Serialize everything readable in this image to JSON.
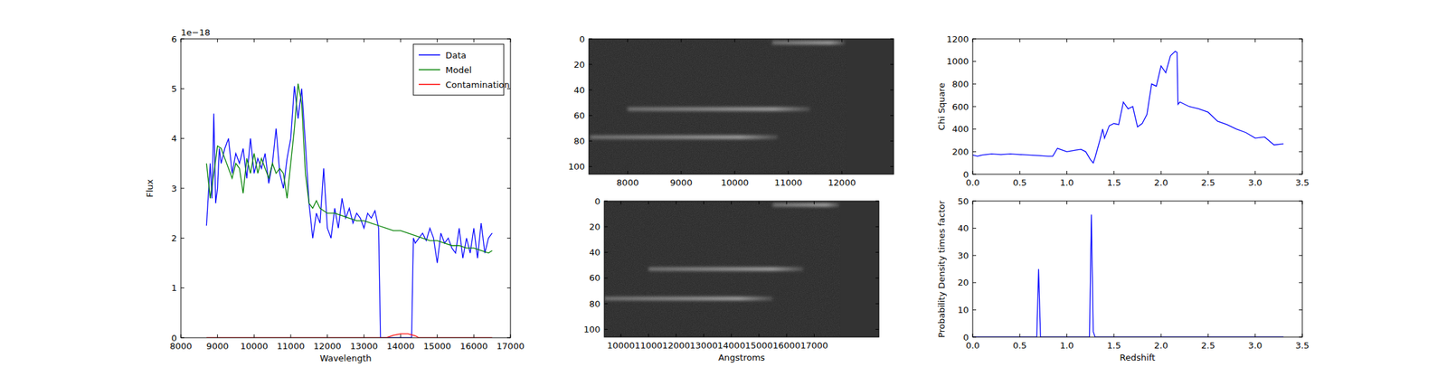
{
  "chart_data": [
    {
      "type": "line",
      "x_label": "Wavelength",
      "y_label": "Flux",
      "y_scale_label": "1e−18",
      "xlim": [
        8000,
        17000
      ],
      "xticks": [
        8000,
        9000,
        10000,
        11000,
        12000,
        13000,
        14000,
        15000,
        16000,
        17000
      ],
      "ylim": [
        0,
        6
      ],
      "yticks": [
        0,
        1,
        2,
        3,
        4,
        5,
        6
      ],
      "legend": "upper right",
      "series": [
        {
          "name": "Data",
          "color": "#0000ff",
          "x": [
            8700,
            8800,
            8850,
            8900,
            8950,
            9000,
            9050,
            9100,
            9200,
            9300,
            9400,
            9500,
            9600,
            9700,
            9800,
            9900,
            10000,
            10100,
            10200,
            10300,
            10400,
            10500,
            10600,
            10700,
            10800,
            10900,
            11000,
            11100,
            11200,
            11300,
            11400,
            11500,
            11600,
            11700,
            11800,
            11900,
            12000,
            12100,
            12200,
            12300,
            12400,
            12500,
            12600,
            12700,
            12800,
            12900,
            13000,
            13100,
            13200,
            13300,
            13400,
            13450,
            14300,
            14350,
            14400,
            14500,
            14600,
            14700,
            14800,
            14900,
            15000,
            15100,
            15200,
            15300,
            15400,
            15500,
            15600,
            15700,
            15800,
            15900,
            16000,
            16100,
            16200,
            16300,
            16400,
            16500
          ],
          "values": [
            2.25,
            3.5,
            2.8,
            4.5,
            2.7,
            3.0,
            3.8,
            3.5,
            3.8,
            4.0,
            3.3,
            3.7,
            3.5,
            3.8,
            3.2,
            4.0,
            3.3,
            3.6,
            3.4,
            3.7,
            3.1,
            3.5,
            4.2,
            3.3,
            3.0,
            3.6,
            4.0,
            5.05,
            4.4,
            5.0,
            3.9,
            2.7,
            2.0,
            2.5,
            2.3,
            3.4,
            2.2,
            2.0,
            2.6,
            2.2,
            2.8,
            2.4,
            2.6,
            2.3,
            2.5,
            2.4,
            2.2,
            2.5,
            2.4,
            2.55,
            2.2,
            0,
            0,
            2.0,
            1.9,
            2.0,
            2.1,
            1.95,
            2.2,
            2.0,
            1.5,
            2.1,
            1.9,
            2.0,
            1.8,
            1.7,
            2.2,
            1.6,
            2.0,
            1.7,
            2.2,
            1.6,
            2.3,
            1.7,
            2.0,
            2.1
          ]
        },
        {
          "name": "Model",
          "color": "#008000",
          "x": [
            8700,
            8800,
            8900,
            9000,
            9100,
            9200,
            9300,
            9400,
            9500,
            9600,
            9700,
            9800,
            9900,
            10000,
            10100,
            10200,
            10300,
            10400,
            10500,
            10600,
            10700,
            10800,
            10900,
            11000,
            11100,
            11200,
            11300,
            11400,
            11500,
            11600,
            11700,
            11800,
            11900,
            12000,
            12200,
            12400,
            12600,
            12800,
            13000,
            13200,
            13400,
            13600,
            13800,
            14000,
            14200,
            14400,
            14600,
            14800,
            15000,
            15200,
            15400,
            15600,
            15800,
            16000,
            16200,
            16400,
            16500
          ],
          "values": [
            3.5,
            2.8,
            3.3,
            3.85,
            3.8,
            3.6,
            3.4,
            3.2,
            3.5,
            3.4,
            2.9,
            3.6,
            3.3,
            3.7,
            3.3,
            3.6,
            3.4,
            3.2,
            3.5,
            3.3,
            3.4,
            3.3,
            2.8,
            3.5,
            4.2,
            5.1,
            4.7,
            3.3,
            2.7,
            2.6,
            2.75,
            2.6,
            2.55,
            2.5,
            2.5,
            2.45,
            2.4,
            2.35,
            2.35,
            2.3,
            2.25,
            2.2,
            2.15,
            2.15,
            2.1,
            2.05,
            2.0,
            1.95,
            1.95,
            1.9,
            1.85,
            1.85,
            1.8,
            1.8,
            1.75,
            1.7,
            1.75
          ]
        },
        {
          "name": "Contamination",
          "color": "#ff0000",
          "x": [
            8700,
            13600,
            13800,
            14000,
            14200,
            14400,
            14500,
            16500
          ],
          "values": [
            0,
            0,
            0.05,
            0.08,
            0.08,
            0.04,
            0,
            0
          ]
        }
      ]
    },
    {
      "type": "image",
      "xlim": [
        7276,
        12966
      ],
      "xticks": [
        8000,
        9000,
        10000,
        11000,
        12000
      ],
      "ylim": [
        106,
        0
      ],
      "yticks": [
        0,
        20,
        40,
        60,
        80,
        100
      ],
      "dark_from": 12086,
      "traces": [
        {
          "y": 3,
          "x0": 10700,
          "x1": 12050
        },
        {
          "y": 55,
          "x0": 8000,
          "x1": 11400
        },
        {
          "y": 77,
          "x0": 7300,
          "x1": 10800
        }
      ]
    },
    {
      "type": "image",
      "x_label": "Angstroms",
      "xlim": [
        9397,
        19344
      ],
      "xticks": [
        10000,
        11000,
        12000,
        13000,
        14000,
        15000,
        16000,
        17000
      ],
      "ylim": [
        106,
        0
      ],
      "yticks": [
        0,
        20,
        40,
        60,
        80,
        100
      ],
      "dark_from": 17938,
      "traces": [
        {
          "y": 3,
          "x0": 15500,
          "x1": 17900
        },
        {
          "y": 53,
          "x0": 11000,
          "x1": 16600
        },
        {
          "y": 76,
          "x0": 9400,
          "x1": 15500
        }
      ]
    },
    {
      "type": "line",
      "y_label": "Chi Square",
      "xlim": [
        0,
        3.5
      ],
      "xticks": [
        {
          "value": 0,
          "label": "0.0"
        },
        0.5,
        {
          "value": 1,
          "label": "1.0"
        },
        1.5,
        {
          "value": 2,
          "label": "2.0"
        },
        2.5,
        {
          "value": 3,
          "label": "3.0"
        },
        3.5
      ],
      "ylim": [
        0,
        1200
      ],
      "yticks": [
        0,
        200,
        400,
        600,
        800,
        1000,
        1200
      ],
      "series": [
        {
          "color": "#0000ff",
          "x": [
            0,
            0.05,
            0.1,
            0.2,
            0.3,
            0.4,
            0.5,
            0.6,
            0.7,
            0.8,
            0.85,
            0.9,
            0.95,
            1.0,
            1.1,
            1.15,
            1.2,
            1.25,
            1.28,
            1.3,
            1.35,
            1.38,
            1.4,
            1.45,
            1.5,
            1.55,
            1.6,
            1.65,
            1.7,
            1.75,
            1.8,
            1.85,
            1.9,
            1.95,
            2.0,
            2.05,
            2.1,
            2.15,
            2.17,
            2.18,
            2.2,
            2.3,
            2.4,
            2.5,
            2.6,
            2.7,
            2.8,
            2.9,
            3.0,
            3.1,
            3.2,
            3.3
          ],
          "values": [
            170,
            160,
            170,
            180,
            175,
            180,
            175,
            170,
            165,
            160,
            160,
            230,
            215,
            200,
            215,
            220,
            200,
            130,
            100,
            150,
            300,
            400,
            320,
            430,
            450,
            440,
            640,
            580,
            600,
            420,
            450,
            530,
            800,
            780,
            960,
            900,
            1050,
            1090,
            1080,
            620,
            640,
            600,
            580,
            550,
            470,
            440,
            400,
            370,
            320,
            330,
            260,
            270
          ]
        }
      ]
    },
    {
      "type": "line",
      "x_label": "Redshift",
      "y_label": "Probability Density times factor",
      "xlim": [
        0,
        3.5
      ],
      "xticks": [
        {
          "value": 0,
          "label": "0.0"
        },
        0.5,
        {
          "value": 1,
          "label": "1.0"
        },
        1.5,
        {
          "value": 2,
          "label": "2.0"
        },
        2.5,
        {
          "value": 3,
          "label": "3.0"
        },
        3.5
      ],
      "ylim": [
        0,
        50
      ],
      "yticks": [
        0,
        10,
        20,
        30,
        40,
        50
      ],
      "series": [
        {
          "color": "#0000ff",
          "x": [
            0,
            0.68,
            0.7,
            0.72,
            1.24,
            1.26,
            1.28,
            1.3,
            3.3
          ],
          "values": [
            0,
            0,
            25,
            0,
            0,
            45,
            2,
            0,
            0
          ]
        }
      ]
    }
  ]
}
